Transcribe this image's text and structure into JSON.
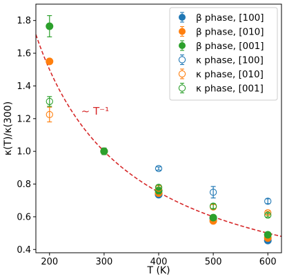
{
  "chart_data": {
    "type": "scatter",
    "title": "",
    "xlabel": "T (K)",
    "ylabel": "κ(T)/κ(300)",
    "xlim": [
      175,
      625
    ],
    "ylim": [
      0.38,
      1.9
    ],
    "xticks": [
      200,
      300,
      400,
      500,
      600
    ],
    "yticks": [
      0.4,
      0.6,
      0.8,
      1.0,
      1.2,
      1.4,
      1.6,
      1.8
    ],
    "tick_labels_x": [
      "200",
      "300",
      "400",
      "500",
      "600"
    ],
    "tick_labels_y": [
      "0.4",
      "0.6",
      "0.8",
      "1.0",
      "1.2",
      "1.4",
      "1.6",
      "1.8"
    ],
    "grid": false,
    "legend_position": "top-right",
    "reference_curve": {
      "label": "~ T⁻¹",
      "formula": "300/T",
      "color": "#d62728",
      "style": "dashed"
    },
    "series": [
      {
        "name": "β phase, [100]",
        "color": "#1f77b4",
        "marker": "filled",
        "x": [
          300,
          400,
          500,
          600
        ],
        "y": [
          1.0,
          0.735,
          0.59,
          0.455
        ],
        "yerr": [
          0.02,
          0.015,
          0.015,
          0.012
        ]
      },
      {
        "name": "β phase, [010]",
        "color": "#ff7f0e",
        "marker": "filled",
        "x": [
          200,
          300,
          400,
          500,
          600
        ],
        "y": [
          1.55,
          1.0,
          0.745,
          0.575,
          0.47
        ],
        "yerr": [
          0.015,
          0.015,
          0.015,
          0.012,
          0.012
        ]
      },
      {
        "name": "β phase, [001]",
        "color": "#2ca02c",
        "marker": "filled",
        "x": [
          200,
          300,
          400,
          500,
          600
        ],
        "y": [
          1.765,
          1.0,
          0.76,
          0.595,
          0.49
        ],
        "yerr": [
          0.065,
          0.02,
          0.02,
          0.015,
          0.012
        ]
      },
      {
        "name": "κ phase, [100]",
        "color": "#1f77b4",
        "marker": "open",
        "x": [
          400,
          500,
          600
        ],
        "y": [
          0.895,
          0.75,
          0.695
        ],
        "yerr": [
          0.01,
          0.035,
          0.015
        ]
      },
      {
        "name": "κ phase, [010]",
        "color": "#ff7f0e",
        "marker": "open",
        "x": [
          200,
          400,
          500,
          600
        ],
        "y": [
          1.225,
          0.775,
          0.66,
          0.625
        ],
        "yerr": [
          0.045,
          0.015,
          0.015,
          0.01
        ]
      },
      {
        "name": "κ phase, [001]",
        "color": "#2ca02c",
        "marker": "open",
        "x": [
          200,
          400,
          500,
          600
        ],
        "y": [
          1.305,
          0.78,
          0.665,
          0.61
        ],
        "yerr": [
          0.03,
          0.015,
          0.015,
          0.012
        ]
      }
    ]
  }
}
